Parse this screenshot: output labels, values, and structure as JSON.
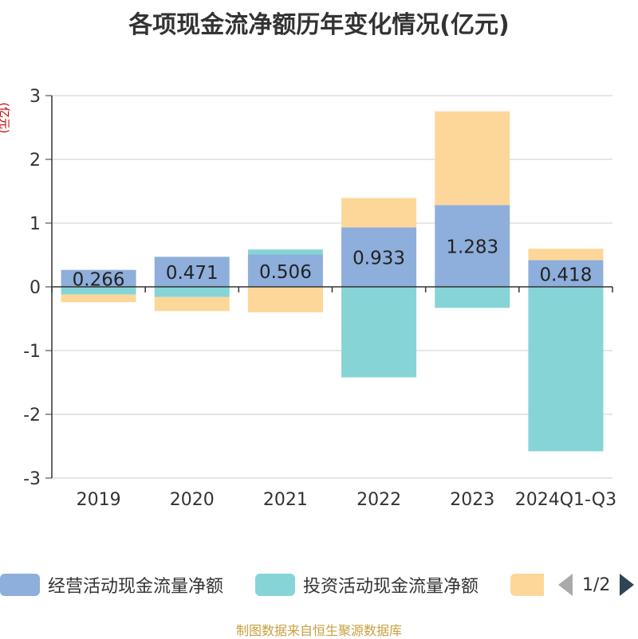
{
  "title": "各项现金流净额历年变化情况(亿元)",
  "unit_label": "(亿元)",
  "colors": {
    "operating": "#8eaedb",
    "investing": "#86d4d6",
    "financing": "#fdd79a",
    "axis": "#333333",
    "grid": "#cccccc"
  },
  "legend": {
    "items": [
      {
        "label": "经营活动现金流量净额"
      },
      {
        "label": "投资活动现金流量净额"
      },
      {
        "label": ""
      }
    ],
    "page": "1/2"
  },
  "source": "制图数据来自恒生聚源数据库",
  "chart_data": {
    "type": "bar",
    "stacked": true,
    "categories": [
      "2019",
      "2020",
      "2021",
      "2022",
      "2023",
      "2024Q1-Q3"
    ],
    "ylim": [
      -3,
      3
    ],
    "yticks": [
      3,
      2,
      1,
      0,
      -1,
      -2,
      -3
    ],
    "grid": true,
    "legend_position": "bottom",
    "series": [
      {
        "name": "经营活动现金流量净额",
        "values": [
          0.266,
          0.471,
          0.506,
          0.933,
          1.283,
          0.418
        ],
        "labels": [
          "0.266",
          "0.471",
          "0.506",
          "0.933",
          "1.283",
          "0.418"
        ]
      },
      {
        "name": "投资活动现金流量净额",
        "values": [
          -0.12,
          -0.16,
          0.08,
          -1.42,
          -0.33,
          -2.58
        ]
      },
      {
        "name": "",
        "values": [
          -0.12,
          -0.22,
          -0.4,
          0.46,
          1.47,
          0.18
        ]
      }
    ]
  }
}
